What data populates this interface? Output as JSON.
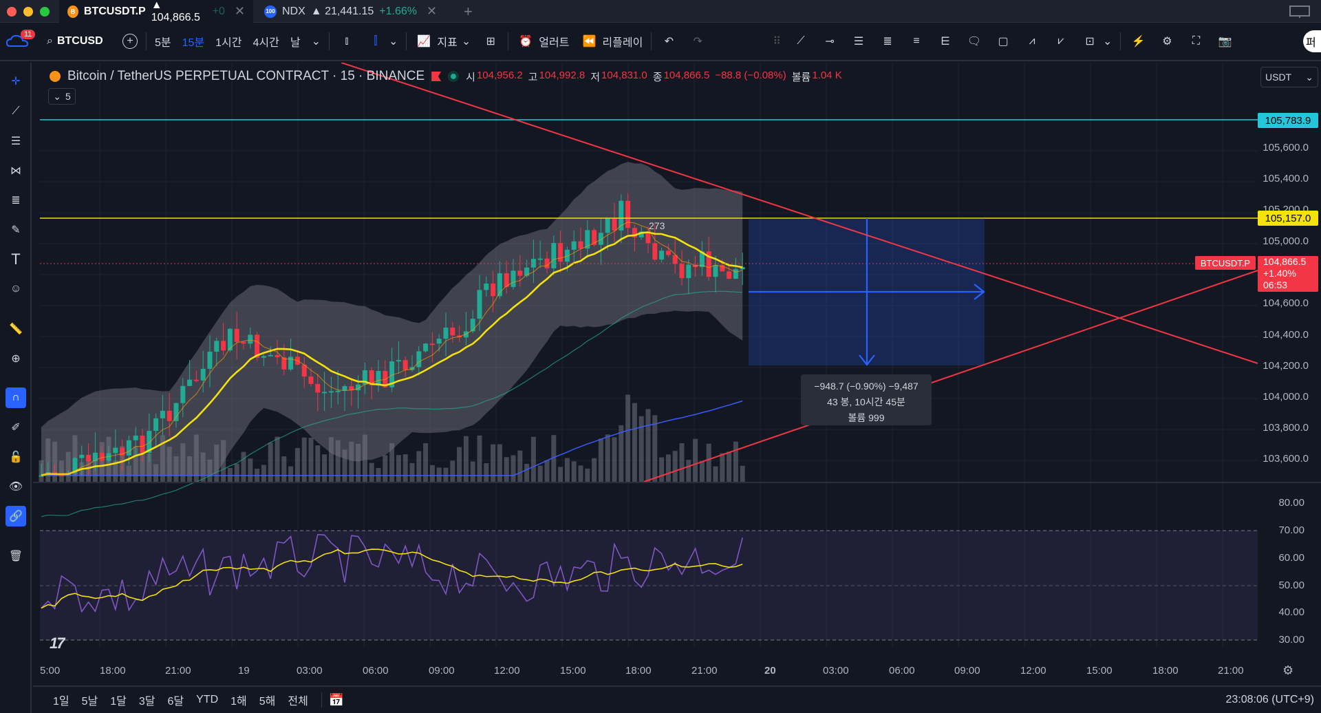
{
  "tabs": [
    {
      "symbol": "BTCUSDT.P",
      "price": "▲ 104,866.5",
      "change": "+0",
      "icon": "B"
    },
    {
      "symbol": "NDX",
      "price": "▲ 21,441.15",
      "change": "+1.66%",
      "icon": "100"
    }
  ],
  "toolbar": {
    "notif_count": "11",
    "search_symbol": "BTCUSD",
    "intervals": [
      "5분",
      "15분",
      "1시간",
      "4시간",
      "날"
    ],
    "active_interval": "15분",
    "indicators": "지표",
    "alerts": "얼러트",
    "replay": "리플레이",
    "right_cut": "퍼"
  },
  "legend": {
    "title": "Bitcoin / TetherUS PERPETUAL CONTRACT · 15 · BINANCE",
    "open_label": "시",
    "open": "104,956.2",
    "high_label": "고",
    "high": "104,992.8",
    "low_label": "저",
    "low": "104,831.0",
    "close_label": "종",
    "close": "104,866.5",
    "change": "−88.8 (−0.08%)",
    "vol_label": "볼륨",
    "vol": "1.04 K",
    "collapsed_count": "5"
  },
  "currency": "USDT",
  "price_axis": [
    "105,600.0",
    "105,400.0",
    "105,200.0",
    "105,000.0",
    "104,600.0",
    "104,400.0",
    "104,200.0",
    "104,000.0",
    "103,800.0",
    "103,600.0"
  ],
  "rsi_axis": [
    "80.00",
    "70.00",
    "60.00",
    "50.00",
    "40.00",
    "30.00"
  ],
  "price_tags": {
    "cyan": "105,783.9",
    "yellow": "105,157.0",
    "current_symbol": "BTCUSDT.P",
    "current": "104,866.5",
    "current_change": "+1.40%",
    "countdown": "06:53"
  },
  "candle_label": "273",
  "measure": {
    "line1": "−948.7 (−0.90%) −9,487",
    "line2": "43 봉, 10시간 45분",
    "line3": "볼륨 999"
  },
  "time_axis": [
    "5:00",
    "18:00",
    "21:00",
    "19",
    "03:00",
    "06:00",
    "09:00",
    "12:00",
    "15:00",
    "18:00",
    "21:00",
    "20",
    "03:00",
    "06:00",
    "09:00",
    "12:00",
    "15:00",
    "18:00",
    "21:00"
  ],
  "ranges": [
    "1일",
    "5날",
    "1달",
    "3달",
    "6달",
    "YTD",
    "1해",
    "5해",
    "전체"
  ],
  "clock": "23:08:06 (UTC+9)",
  "colors": {
    "up": "#22ab94",
    "down": "#f23645",
    "accent": "#2962ff",
    "cyan_line": "#26c6da",
    "yellow_line": "#f5e10b",
    "trend_line": "#f23645",
    "rsi": "#7e57c2"
  }
}
